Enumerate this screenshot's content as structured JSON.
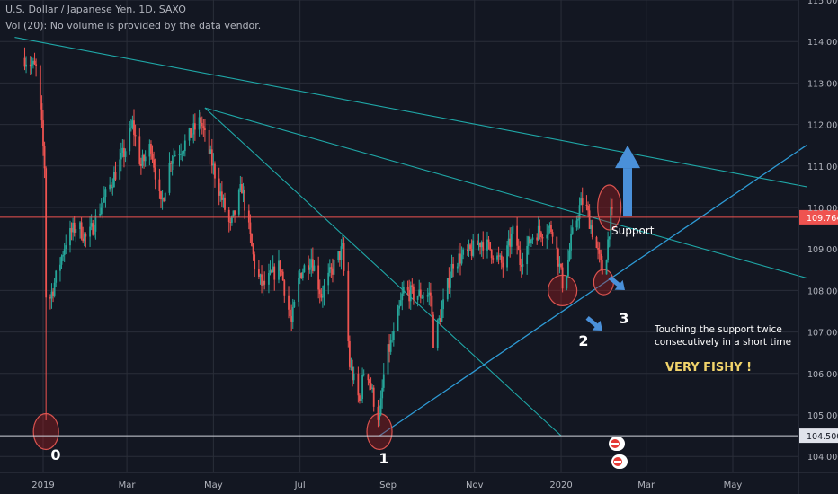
{
  "header": {
    "title": "U.S. Dollar / Japanese Yen, 1D, SAXO",
    "volume_note": "Vol (20): No volume is provided by the data vendor."
  },
  "colors": {
    "background": "#131722",
    "grid": "#2a2e39",
    "up_candle": "#26a69a",
    "down_candle": "#ef5350",
    "trendline": "#1fa7a7",
    "support_line": "#2e9bd6",
    "price_line": "#ef5350",
    "ellipse_fill": "#b71c1c",
    "arrow": "#4a90d9",
    "annotation_highlight": "#f2d46b"
  },
  "chart_data": {
    "type": "candlestick",
    "title": "U.S. Dollar / Japanese Yen, 1D, SAXO",
    "x_tick_labels": [
      "2019",
      "Mar",
      "May",
      "Jul",
      "Sep",
      "Nov",
      "2020",
      "Mar",
      "May"
    ],
    "y_tick_labels": [
      "115.000",
      "114.000",
      "113.000",
      "112.000",
      "111.000",
      "110.000",
      "109.000",
      "108.000",
      "107.000",
      "106.000",
      "105.000",
      "104.000"
    ],
    "ylim": [
      103.6,
      115.2
    ],
    "grid": true,
    "price_scale_position": "right",
    "last_price": {
      "label": "109.764",
      "value": 109.764
    },
    "horizontal_level": {
      "label": "104.500",
      "value": 104.5
    },
    "price_path": [
      [
        "2018-12-19",
        113.6
      ],
      [
        "2018-12-28",
        113.3
      ],
      [
        "2019-01-02",
        111.0
      ],
      [
        "2019-01-03",
        107.9
      ],
      [
        "2019-01-04",
        107.6
      ],
      [
        "2019-01-10",
        108.3
      ],
      [
        "2019-01-17",
        109.2
      ],
      [
        "2019-01-25",
        109.6
      ],
      [
        "2019-02-01",
        109.2
      ],
      [
        "2019-02-08",
        109.8
      ],
      [
        "2019-02-18",
        110.6
      ],
      [
        "2019-02-28",
        111.4
      ],
      [
        "2019-03-05",
        112.0
      ],
      [
        "2019-03-11",
        111.0
      ],
      [
        "2019-03-18",
        111.5
      ],
      [
        "2019-03-25",
        110.0
      ],
      [
        "2019-04-01",
        111.2
      ],
      [
        "2019-04-10",
        111.5
      ],
      [
        "2019-04-22",
        112.1
      ],
      [
        "2019-04-25",
        111.7
      ],
      [
        "2019-05-07",
        110.2
      ],
      [
        "2019-05-13",
        109.5
      ],
      [
        "2019-05-21",
        110.5
      ],
      [
        "2019-05-31",
        108.4
      ],
      [
        "2019-06-05",
        108.1
      ],
      [
        "2019-06-17",
        108.6
      ],
      [
        "2019-06-25",
        107.2
      ],
      [
        "2019-07-01",
        108.4
      ],
      [
        "2019-07-09",
        108.8
      ],
      [
        "2019-07-16",
        107.9
      ],
      [
        "2019-07-25",
        108.6
      ],
      [
        "2019-07-31",
        109.0
      ],
      [
        "2019-08-05",
        106.2
      ],
      [
        "2019-08-12",
        105.3
      ],
      [
        "2019-08-16",
        106.3
      ],
      [
        "2019-08-23",
        105.2
      ],
      [
        "2019-08-26",
        104.9
      ],
      [
        "2019-08-30",
        106.3
      ],
      [
        "2019-09-05",
        106.9
      ],
      [
        "2019-09-12",
        108.0
      ],
      [
        "2019-09-19",
        107.9
      ],
      [
        "2019-10-01",
        107.9
      ],
      [
        "2019-10-03",
        106.8
      ],
      [
        "2019-10-09",
        107.5
      ],
      [
        "2019-10-17",
        108.7
      ],
      [
        "2019-10-28",
        108.9
      ],
      [
        "2019-11-06",
        109.2
      ],
      [
        "2019-11-12",
        109.0
      ],
      [
        "2019-11-21",
        108.6
      ],
      [
        "2019-11-29",
        109.5
      ],
      [
        "2019-12-03",
        108.7
      ],
      [
        "2019-12-13",
        109.4
      ],
      [
        "2019-12-26",
        109.5
      ],
      [
        "2020-01-03",
        108.0
      ],
      [
        "2020-01-08",
        109.2
      ],
      [
        "2020-01-14",
        110.0
      ],
      [
        "2020-01-17",
        110.2
      ],
      [
        "2020-01-24",
        109.3
      ],
      [
        "2020-01-31",
        108.3
      ],
      [
        "2020-02-05",
        109.8
      ],
      [
        "2020-02-07",
        109.764
      ]
    ],
    "lines": [
      {
        "name": "upper-trendline",
        "points": [
          [
            "2018-12-12",
            114.1
          ],
          [
            "2020-06-22",
            110.5
          ]
        ]
      },
      {
        "name": "middle-trendline",
        "points": [
          [
            "2019-04-25",
            112.4
          ],
          [
            "2020-06-22",
            108.3
          ]
        ]
      },
      {
        "name": "steep-trendline",
        "points": [
          [
            "2019-04-25",
            112.4
          ],
          [
            "2020-01-01",
            104.5
          ]
        ]
      },
      {
        "name": "support-line",
        "points": [
          [
            "2019-08-26",
            104.5
          ],
          [
            "2020-06-22",
            111.5
          ]
        ]
      }
    ]
  },
  "annotations": {
    "support_label": "Support",
    "touch_note_line1": "Touching the support twice",
    "touch_note_line2": "consecutively in a short time",
    "verdict": "VERY FISHY !",
    "point_labels": [
      {
        "id": "0",
        "label": "0"
      },
      {
        "id": "1",
        "label": "1"
      },
      {
        "id": "2",
        "label": "2"
      },
      {
        "id": "3",
        "label": "3"
      }
    ]
  }
}
